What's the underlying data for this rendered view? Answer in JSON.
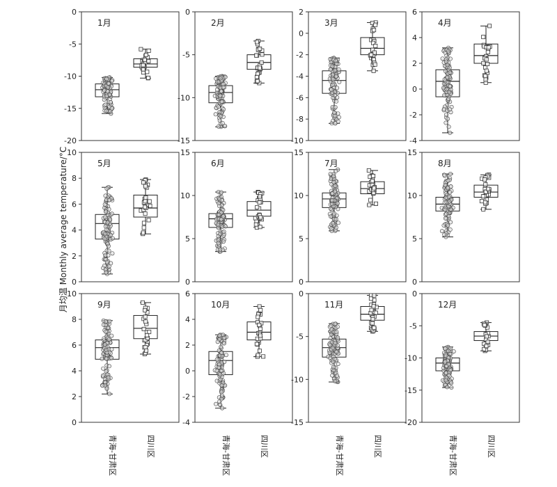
{
  "chart_data": {
    "type": "box",
    "ylabel": "月均温  Monthly average temperature/°C",
    "groups": [
      "青海-甘肃区",
      "四川区"
    ],
    "grid": false,
    "legend": "none",
    "panels": [
      {
        "title": "1月",
        "ylim": [
          -20,
          0
        ],
        "yticks": [
          -20,
          -15,
          -10,
          -5,
          0
        ],
        "boxes": [
          {
            "group": "青海-甘肃区",
            "min": -15.8,
            "q1": -13.2,
            "median": -12.1,
            "q3": -11.2,
            "max": -10.2
          },
          {
            "group": "四川区",
            "min": -10.3,
            "q1": -8.6,
            "median": -8.1,
            "q3": -7.3,
            "max": -5.8
          }
        ]
      },
      {
        "title": "2月",
        "ylim": [
          -15,
          0
        ],
        "yticks": [
          -15,
          -10,
          -5,
          0
        ],
        "boxes": [
          {
            "group": "青海-甘肃区",
            "min": -13.4,
            "q1": -10.6,
            "median": -9.4,
            "q3": -8.6,
            "max": -7.5
          },
          {
            "group": "四川区",
            "min": -8.3,
            "q1": -6.7,
            "median": -5.9,
            "q3": -5.0,
            "max": -3.4
          }
        ]
      },
      {
        "title": "3月",
        "ylim": [
          -10,
          2
        ],
        "yticks": [
          -10,
          -8,
          -6,
          -4,
          -2,
          0,
          2
        ],
        "boxes": [
          {
            "group": "青海-甘肃区",
            "min": -8.4,
            "q1": -5.6,
            "median": -4.4,
            "q3": -3.5,
            "max": -2.3
          },
          {
            "group": "四川区",
            "min": -3.5,
            "q1": -2.0,
            "median": -1.4,
            "q3": -0.4,
            "max": 1.0
          }
        ]
      },
      {
        "title": "4月",
        "ylim": [
          -4,
          6
        ],
        "yticks": [
          -4,
          -2,
          0,
          2,
          4,
          6
        ],
        "boxes": [
          {
            "group": "青海-甘肃区",
            "min": -3.4,
            "q1": -0.6,
            "median": 0.6,
            "q3": 1.5,
            "max": 3.2
          },
          {
            "group": "四川区",
            "min": 0.5,
            "q1": 2.0,
            "median": 2.6,
            "q3": 3.5,
            "max": 4.9
          }
        ]
      },
      {
        "title": "5月",
        "ylim": [
          0,
          10
        ],
        "yticks": [
          0,
          2,
          4,
          6,
          8,
          10
        ],
        "boxes": [
          {
            "group": "青海-甘肃区",
            "min": 0.6,
            "q1": 3.3,
            "median": 4.5,
            "q3": 5.2,
            "max": 7.3
          },
          {
            "group": "四川区",
            "min": 3.7,
            "q1": 5.0,
            "median": 5.7,
            "q3": 6.7,
            "max": 7.9
          }
        ]
      },
      {
        "title": "6月",
        "ylim": [
          0,
          15
        ],
        "yticks": [
          0,
          5,
          10,
          15
        ],
        "boxes": [
          {
            "group": "青海-甘肃区",
            "min": 3.5,
            "q1": 6.3,
            "median": 7.3,
            "q3": 7.9,
            "max": 10.4
          },
          {
            "group": "四川区",
            "min": 6.3,
            "q1": 7.6,
            "median": 8.3,
            "q3": 9.3,
            "max": 10.4
          }
        ]
      },
      {
        "title": "7月",
        "ylim": [
          0,
          15
        ],
        "yticks": [
          0,
          5,
          10,
          15
        ],
        "boxes": [
          {
            "group": "青海-甘肃区",
            "min": 5.9,
            "q1": 8.6,
            "median": 9.6,
            "q3": 10.3,
            "max": 13.0
          },
          {
            "group": "四川区",
            "min": 8.9,
            "q1": 10.2,
            "median": 10.8,
            "q3": 11.6,
            "max": 12.9
          }
        ]
      },
      {
        "title": "8月",
        "ylim": [
          0,
          15
        ],
        "yticks": [
          0,
          5,
          10,
          15
        ],
        "boxes": [
          {
            "group": "青海-甘肃区",
            "min": 5.2,
            "q1": 8.2,
            "median": 9.0,
            "q3": 9.8,
            "max": 12.5
          },
          {
            "group": "四川区",
            "min": 8.4,
            "q1": 9.8,
            "median": 10.4,
            "q3": 11.2,
            "max": 12.4
          }
        ]
      },
      {
        "title": "9月",
        "ylim": [
          0,
          10
        ],
        "yticks": [
          0,
          2,
          4,
          6,
          8,
          10
        ],
        "boxes": [
          {
            "group": "青海-甘肃区",
            "min": 2.2,
            "q1": 4.9,
            "median": 5.8,
            "q3": 6.4,
            "max": 7.9
          },
          {
            "group": "四川区",
            "min": 5.3,
            "q1": 6.5,
            "median": 7.3,
            "q3": 8.3,
            "max": 9.3
          }
        ]
      },
      {
        "title": "10月",
        "ylim": [
          -4,
          6
        ],
        "yticks": [
          -4,
          -2,
          0,
          2,
          4,
          6
        ],
        "boxes": [
          {
            "group": "青海-甘肃区",
            "min": -2.9,
            "q1": -0.3,
            "median": 0.8,
            "q3": 1.5,
            "max": 2.8
          },
          {
            "group": "四川区",
            "min": 1.1,
            "q1": 2.4,
            "median": 3.0,
            "q3": 3.8,
            "max": 5.0
          }
        ]
      },
      {
        "title": "11月",
        "ylim": [
          -15,
          0
        ],
        "yticks": [
          -15,
          -10,
          -5,
          0
        ],
        "boxes": [
          {
            "group": "青海-甘肃区",
            "min": -10.3,
            "q1": -7.4,
            "median": -6.3,
            "q3": -5.3,
            "max": -3.5
          },
          {
            "group": "四川区",
            "min": -4.4,
            "q1": -3.1,
            "median": -2.4,
            "q3": -1.5,
            "max": -0.2
          }
        ]
      },
      {
        "title": "12月",
        "ylim": [
          -20,
          0
        ],
        "yticks": [
          -20,
          -15,
          -10,
          -5,
          0
        ],
        "boxes": [
          {
            "group": "青海-甘肃区",
            "min": -14.6,
            "q1": -12.0,
            "median": -10.8,
            "q3": -10.0,
            "max": -8.3
          },
          {
            "group": "四川区",
            "min": -8.9,
            "q1": -7.3,
            "median": -6.6,
            "q3": -5.9,
            "max": -4.5
          }
        ]
      }
    ]
  }
}
